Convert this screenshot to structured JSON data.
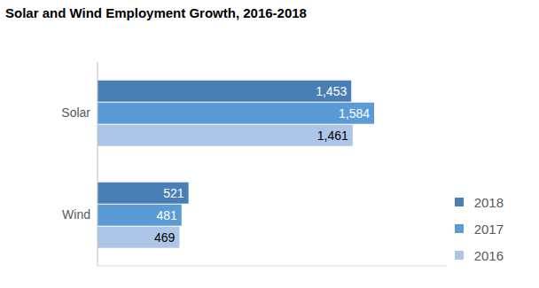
{
  "chart_data": {
    "type": "bar",
    "title": "Solar and Wind Employment Growth, 2016-2018",
    "orientation": "horizontal",
    "categories": [
      "Solar",
      "Wind"
    ],
    "series": [
      {
        "name": "2018",
        "color": "#4a7fb5",
        "values": [
          1453,
          521
        ],
        "value_labels": [
          "1,453",
          "521"
        ]
      },
      {
        "name": "2017",
        "color": "#5b9bd5",
        "values": [
          1584,
          481
        ],
        "value_labels": [
          "1,584",
          "481"
        ]
      },
      {
        "name": "2016",
        "color": "#adc6e8",
        "values": [
          1461,
          469
        ],
        "value_labels": [
          "1,461",
          "469"
        ]
      }
    ],
    "xlim": [
      0,
      2000
    ],
    "data_labels": true,
    "tick_labels": "y",
    "legend": "lower right",
    "grid": false
  }
}
